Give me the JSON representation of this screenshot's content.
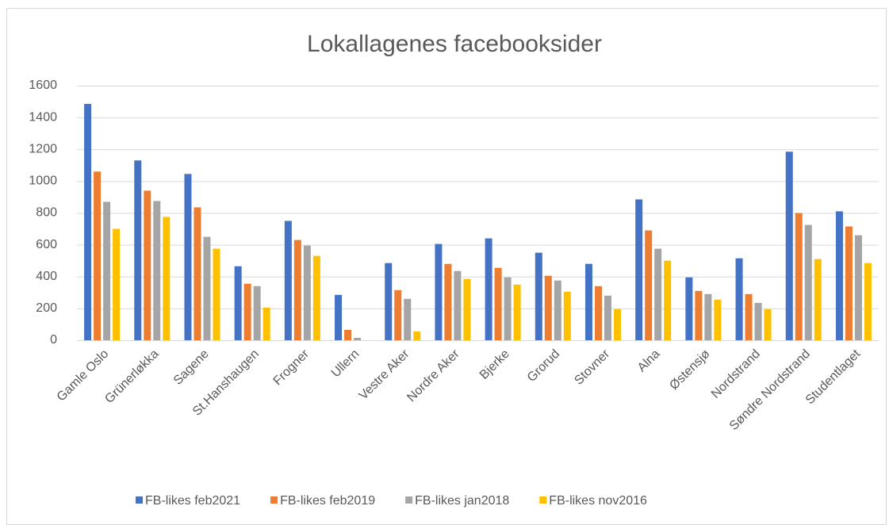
{
  "chart_data": {
    "type": "bar",
    "title": "Lokallagenes facebooksider",
    "categories": [
      "Gamle Oslo",
      "Grünerløkka",
      "Sagene",
      "St.Hanshaugen",
      "Frogner",
      "Ullern",
      "Vestre Aker",
      "Nordre Aker",
      "Bjerke",
      "Grorud",
      "Stovner",
      "Alna",
      "Østensjø",
      "Nordstrand",
      "Søndre Nordstrand",
      "Studentlaget"
    ],
    "series": [
      {
        "name": "FB-likes feb2021",
        "color": "#4472c4",
        "values": [
          1485,
          1130,
          1045,
          465,
          750,
          285,
          485,
          605,
          640,
          550,
          480,
          885,
          395,
          515,
          1185,
          810
        ]
      },
      {
        "name": "FB-likes feb2019",
        "color": "#ed7d31",
        "values": [
          1060,
          940,
          835,
          355,
          630,
          65,
          315,
          480,
          455,
          405,
          340,
          690,
          310,
          290,
          800,
          715
        ]
      },
      {
        "name": "FB-likes jan2018",
        "color": "#a5a5a5",
        "values": [
          870,
          875,
          650,
          340,
          595,
          15,
          260,
          435,
          395,
          375,
          280,
          575,
          290,
          235,
          725,
          660
        ]
      },
      {
        "name": "FB-likes nov2016",
        "color": "#ffc000",
        "values": [
          700,
          775,
          575,
          205,
          530,
          0,
          55,
          385,
          350,
          305,
          195,
          500,
          255,
          195,
          510,
          485
        ]
      }
    ],
    "ylim": [
      0,
      1600
    ],
    "yticks": [
      0,
      200,
      400,
      600,
      800,
      1000,
      1200,
      1400,
      1600
    ],
    "grid": true,
    "legend": "bottom"
  }
}
